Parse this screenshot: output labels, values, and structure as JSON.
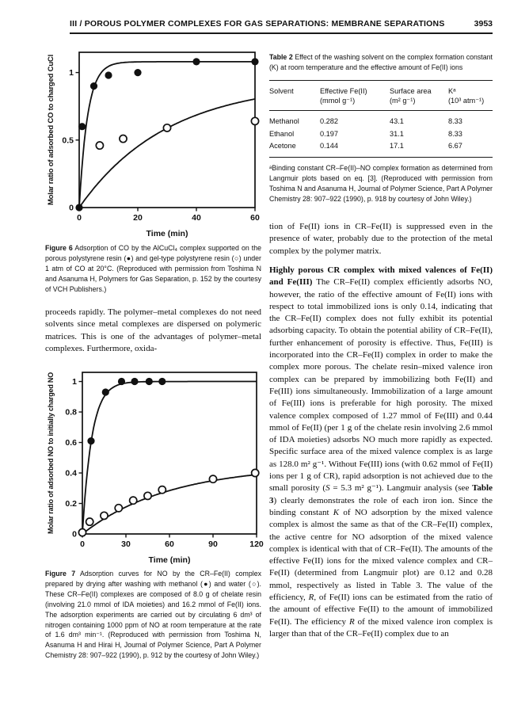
{
  "header": {
    "title": "III / POROUS POLYMER COMPLEXES FOR GAS SEPARATIONS: MEMBRANE SEPARATIONS",
    "page_number": "3953"
  },
  "left_column": {
    "figure6_caption_runs": [
      {
        "t": "Figure 6",
        "style": "b"
      },
      {
        "t": "  Adsorption of CO by the AlCuCl₄ complex supported on the porous polystyrene resin (●) and gel-type polystyrene resin (○) under 1 atm of CO at 20°C. (Reproduced with permission from Toshima N and Asanuma H, Polymers for Gas Separation, p. 152 by the courtesy of VCH Publishers.)",
        "style": ""
      }
    ],
    "paragraph": "proceeds rapidly. The polymer–metal complexes do not need solvents since metal complexes are dispersed on polymeric matrices. This is one of the advantages of polymer–metal complexes. Furthermore, oxida-",
    "figure7_caption_runs": [
      {
        "t": "Figure 7",
        "style": "b"
      },
      {
        "t": "  Adsorption curves for NO by the CR–Fe(II) complex prepared by drying after washing with methanol (●) and water (○). These CR–Fe(II) complexes are composed of 8.0 g of chelate resin (involving 21.0 mmol of IDA moieties) and 16.2 mmol of Fe(II) ions. The adsorption experiments are carried out by circulating 6 dm³ of nitrogen containing 1000 ppm of NO at room temperature at the rate of 1.6 dm³ min⁻¹. (Reproduced with permission from Toshima N, Asanuma H and Hirai H, Journal of Polymer Science, Part A Polymer Chemistry 28: 907–922 (1990), p. 912 by the courtesy of John Wiley.)",
        "style": ""
      }
    ]
  },
  "right_column": {
    "table2": {
      "title_runs": [
        {
          "t": "Table 2",
          "style": "b"
        },
        {
          "t": "  Effect of the washing solvent on the complex formation constant (K) at room temperature and the effective amount of Fe(II) ions",
          "style": ""
        }
      ],
      "columns": [
        {
          "name": "Solvent",
          "unit": ""
        },
        {
          "name": "Effective Fe(II)",
          "unit": "(mmol g⁻¹)"
        },
        {
          "name": "Surface area",
          "unit": "(m² g⁻¹)"
        },
        {
          "name": "Kᵃ",
          "unit": "(10³ atm⁻¹)"
        }
      ],
      "rows": [
        [
          "Methanol",
          "0.282",
          "43.1",
          "8.33"
        ],
        [
          "Ethanol",
          "0.197",
          "31.1",
          "8.33"
        ],
        [
          "Acetone",
          "0.144",
          "17.1",
          "6.67"
        ]
      ],
      "footnote": "ᵃBinding constant CR–Fe(II)–NO complex formation as determined from Langmuir plots based on eq. [3]. (Reproduced with permission from Toshima N and Asanuma H, Journal of Polymer Science, Part A Polymer Chemistry 28: 907–922 (1990), p. 918 by courtesy of John Wiley.)"
    },
    "paragraph1": "tion of Fe(II) ions in CR–Fe(II) is suppressed even in the presence of water, probably due to the protection of the metal complex by the polymer matrix.",
    "paragraph2_runs": [
      {
        "t": "Highly porous CR complex with mixed valences of Fe(II) and Fe(III)",
        "style": "b"
      },
      {
        "t": "  The CR–Fe(II) complex efficiently adsorbs NO, however, the ratio of the effective amount of Fe(II) ions with respect to total immobilized ions is only 0.14, indicating that the CR–Fe(II) complex does not fully exhibit its potential adsorbing capacity. To obtain the potential ability of CR–Fe(II), further enhancement of porosity is effective. Thus, Fe(III) is incorporated into the CR–Fe(II) complex in order to make the complex more porous. The chelate resin–mixed valence iron complex can be prepared by immobilizing both Fe(II) and Fe(III) ions simultaneously. Immobilization of a large amount of Fe(III) ions is preferable for high porosity. The mixed valence complex composed of 1.27 mmol of Fe(III) and 0.44 mmol of Fe(II) (per 1 g of the chelate resin involving 2.6 mmol of IDA moieties) adsorbs NO much more rapidly as expected. Specific surface area of the mixed valence complex is as large as 128.0 m² g⁻¹. Without Fe(III) ions (with 0.62 mmol of Fe(II) ions per 1 g of CR), rapid adsorption is not achieved due to the small porosity (",
        "style": ""
      },
      {
        "t": "S",
        "style": "i"
      },
      {
        "t": " = 5.3 m² g⁻¹). Langmuir analysis (see ",
        "style": ""
      },
      {
        "t": "Table 3",
        "style": "b"
      },
      {
        "t": ") clearly demonstrates the role of each iron ion. Since the binding constant ",
        "style": ""
      },
      {
        "t": "K",
        "style": "i"
      },
      {
        "t": " of NO adsorption by the mixed valence complex is almost the same as that of the CR–Fe(II) complex, the active centre for NO adsorption of the mixed valence complex is identical with that of CR–Fe(II). The amounts of the effective Fe(II) ions for the mixed valence complex and CR–Fe(II) (determined from Langmuir plot) are 0.12 and 0.28 mmol, respectively as listed in Table 3. The value of the efficiency, ",
        "style": ""
      },
      {
        "t": "R",
        "style": "i"
      },
      {
        "t": ", of Fe(II) ions can be estimated from the ratio of the amount of effective Fe(II) to the amount of immobilized Fe(II). The efficiency ",
        "style": ""
      },
      {
        "t": "R",
        "style": "i"
      },
      {
        "t": " of the mixed valence iron complex is larger than that of the CR–Fe(II) complex due to an",
        "style": ""
      }
    ]
  },
  "chart_data": [
    {
      "id": "figure6",
      "type": "scatter",
      "title": "",
      "xlabel": "Time (min)",
      "ylabel": "Molar ratio of adsorbed CO to charged CuCl",
      "xlim": [
        0,
        60
      ],
      "ylim": [
        0,
        1.15
      ],
      "xticks": [
        0,
        20,
        40,
        60
      ],
      "yticks": [
        0,
        0.5,
        1
      ],
      "box": true,
      "grid": false,
      "series": [
        {
          "name": "porous polystyrene resin",
          "marker": "filled",
          "points": [
            [
              0,
              0
            ],
            [
              1,
              0.6
            ],
            [
              5,
              0.9
            ],
            [
              10,
              0.98
            ],
            [
              20,
              1.0
            ],
            [
              40,
              1.08
            ],
            [
              60,
              1.08
            ]
          ],
          "fit": {
            "plateau": 1.08,
            "tau": 2.9
          }
        },
        {
          "name": "gel-type polystyrene resin",
          "marker": "open",
          "points": [
            [
              7,
              0.46
            ],
            [
              15,
              0.51
            ],
            [
              30,
              0.59
            ],
            [
              60,
              0.64
            ]
          ],
          "fit": {
            "plateau": 0.93,
            "tau": 30
          }
        }
      ]
    },
    {
      "id": "figure7",
      "type": "scatter",
      "title": "",
      "xlabel": "Time (min)",
      "ylabel": "Molar ratio of adsorbed NO to initially charged NO",
      "xlim": [
        0,
        120
      ],
      "ylim": [
        0,
        1.06
      ],
      "xticks": [
        0,
        30,
        60,
        90,
        120
      ],
      "yticks": [
        0,
        0.2,
        0.4,
        0.6,
        0.8,
        1
      ],
      "box": true,
      "grid": false,
      "series": [
        {
          "name": "washed with methanol",
          "marker": "filled",
          "points": [
            [
              0,
              0.01
            ],
            [
              6,
              0.61
            ],
            [
              16,
              0.93
            ],
            [
              27,
              1.0
            ],
            [
              36,
              1.0
            ],
            [
              46,
              1.0
            ],
            [
              55,
              1.0
            ]
          ],
          "fit": {
            "plateau": 1.0,
            "tau": 6.5
          }
        },
        {
          "name": "washed with water",
          "marker": "open",
          "points": [
            [
              0,
              0.01
            ],
            [
              5,
              0.08
            ],
            [
              15,
              0.12
            ],
            [
              25,
              0.17
            ],
            [
              35,
              0.22
            ],
            [
              45,
              0.25
            ],
            [
              55,
              0.29
            ],
            [
              90,
              0.36
            ],
            [
              119,
              0.4
            ]
          ],
          "fit": {
            "plateau": 0.45,
            "tau": 60
          }
        }
      ]
    }
  ]
}
